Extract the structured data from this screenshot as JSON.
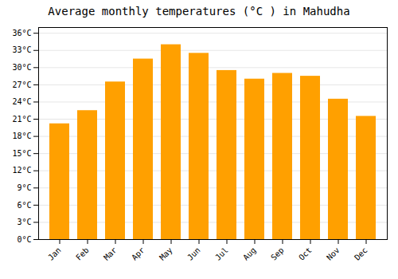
{
  "chart_data": {
    "type": "bar",
    "title": "Average monthly temperatures (°C ) in Mahudha",
    "categories": [
      "Jan",
      "Feb",
      "Mar",
      "Apr",
      "May",
      "Jun",
      "Jul",
      "Aug",
      "Sep",
      "Oct",
      "Nov",
      "Dec"
    ],
    "values": [
      20.2,
      22.5,
      27.5,
      31.5,
      34.0,
      32.5,
      29.5,
      28.0,
      29.0,
      28.5,
      24.5,
      21.5
    ],
    "color": "#FFA000",
    "ylim": [
      0,
      37
    ],
    "yticks": [
      {
        "value": 0,
        "label": "0°C"
      },
      {
        "value": 3,
        "label": "3°C"
      },
      {
        "value": 6,
        "label": "6°C"
      },
      {
        "value": 9,
        "label": "9°C"
      },
      {
        "value": 12,
        "label": "12°C"
      },
      {
        "value": 15,
        "label": "15°C"
      },
      {
        "value": 18,
        "label": "18°C"
      },
      {
        "value": 21,
        "label": "21°C"
      },
      {
        "value": 24,
        "label": "24°C"
      },
      {
        "value": 27,
        "label": "27°C"
      },
      {
        "value": 30,
        "label": "30°C"
      },
      {
        "value": 33,
        "label": "33°C"
      },
      {
        "value": 36,
        "label": "36°C"
      }
    ],
    "grid": true
  }
}
